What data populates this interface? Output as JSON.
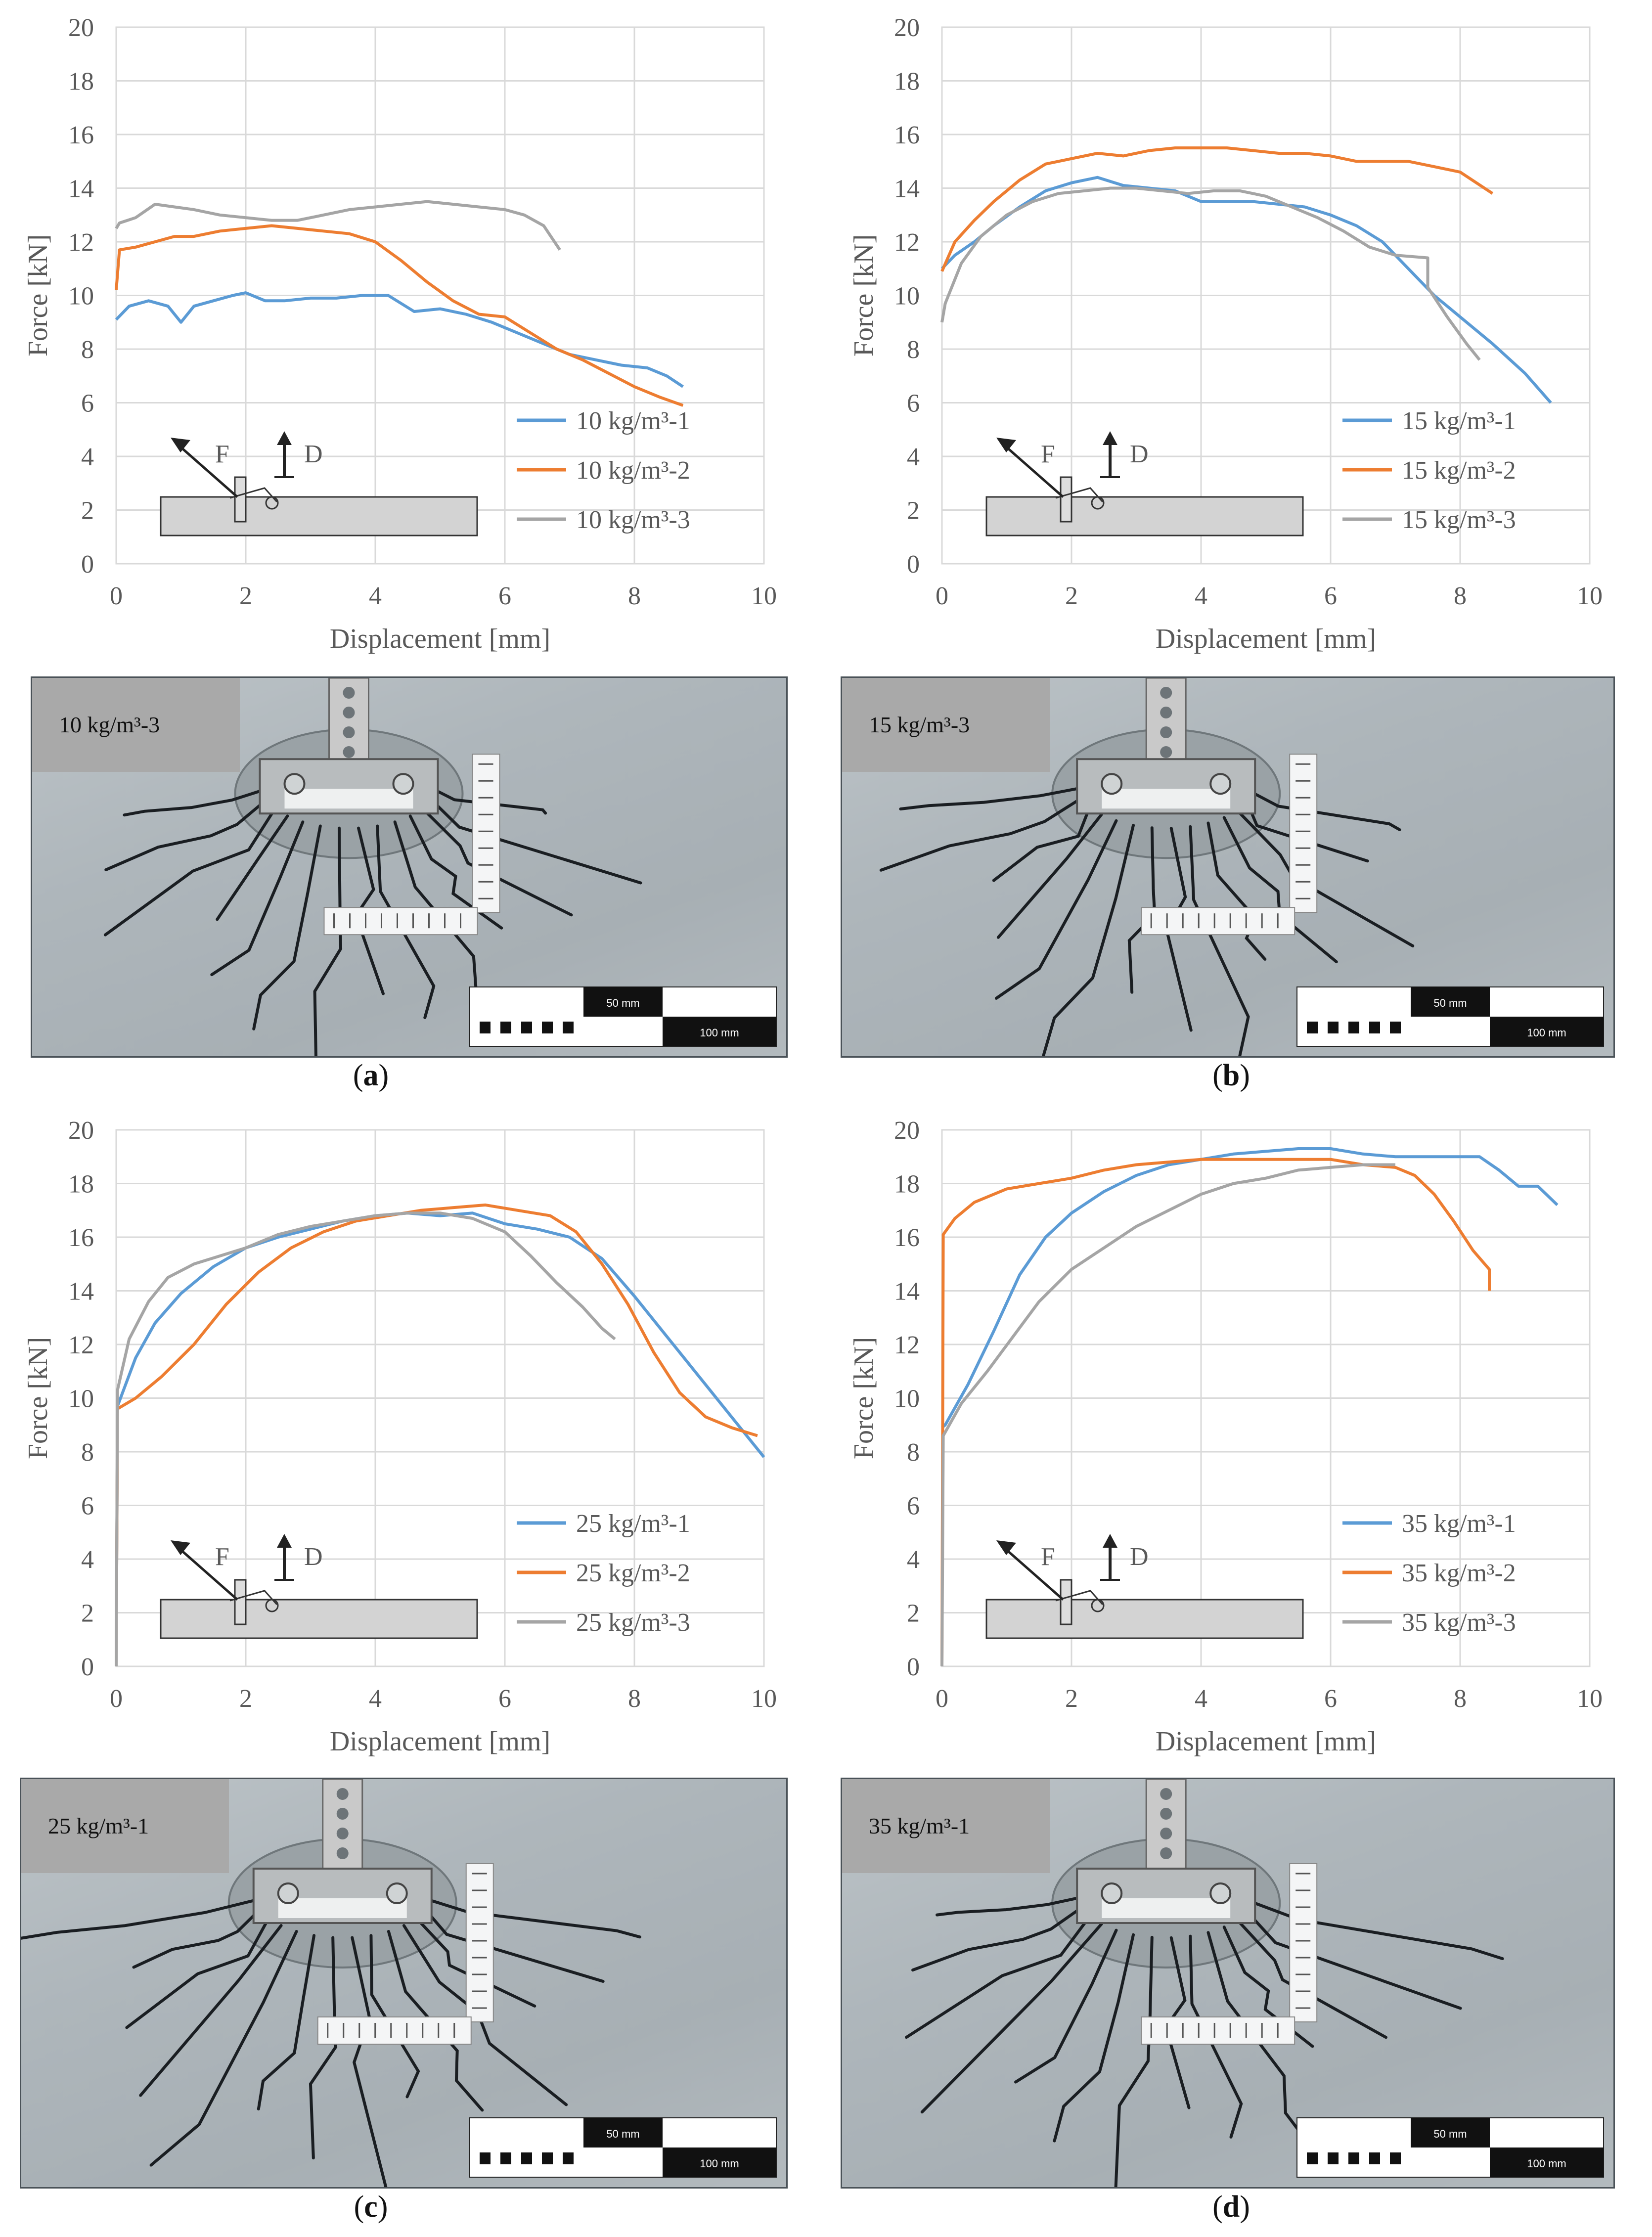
{
  "chart_data": [
    {
      "type": "line",
      "panel": "a",
      "xlabel": "Displacement [mm]",
      "ylabel": "Force [kN]",
      "xlim": [
        0,
        10
      ],
      "ylim": [
        0,
        20
      ],
      "xticks": [
        0,
        2,
        4,
        6,
        8,
        10
      ],
      "yticks": [
        0,
        2,
        4,
        6,
        8,
        10,
        12,
        14,
        16,
        18,
        20
      ],
      "grid": true,
      "legend_position": "bottom-right",
      "inset_labels": [
        "F",
        "D"
      ],
      "series": [
        {
          "name": "10 kg/m³-1",
          "color": "#5B9BD5",
          "x": [
            0,
            0.2,
            0.5,
            0.8,
            1.0,
            1.2,
            1.5,
            1.8,
            2.0,
            2.3,
            2.6,
            3.0,
            3.4,
            3.8,
            4.2,
            4.6,
            5.0,
            5.4,
            5.8,
            6.2,
            6.6,
            7.0,
            7.4,
            7.8,
            8.2,
            8.5,
            8.75
          ],
          "y": [
            9.1,
            9.6,
            9.8,
            9.6,
            9.0,
            9.6,
            9.8,
            10.0,
            10.1,
            9.8,
            9.8,
            9.9,
            9.9,
            10.0,
            10.0,
            9.4,
            9.5,
            9.3,
            9.0,
            8.6,
            8.2,
            7.8,
            7.6,
            7.4,
            7.3,
            7.0,
            6.6
          ]
        },
        {
          "name": "10 kg/m³-2",
          "color": "#ED7D31",
          "x": [
            0,
            0.05,
            0.3,
            0.6,
            0.9,
            1.2,
            1.6,
            2.0,
            2.4,
            2.8,
            3.2,
            3.6,
            4.0,
            4.4,
            4.8,
            5.2,
            5.6,
            6.0,
            6.4,
            6.8,
            7.2,
            7.6,
            8.0,
            8.4,
            8.75
          ],
          "y": [
            10.2,
            11.7,
            11.8,
            12.0,
            12.2,
            12.2,
            12.4,
            12.5,
            12.6,
            12.5,
            12.4,
            12.3,
            12.0,
            11.3,
            10.5,
            9.8,
            9.3,
            9.2,
            8.6,
            8.0,
            7.6,
            7.1,
            6.6,
            6.2,
            5.9
          ]
        },
        {
          "name": "10 kg/m³-3",
          "color": "#A5A5A5",
          "x": [
            0,
            0.05,
            0.3,
            0.6,
            0.9,
            1.2,
            1.6,
            2.0,
            2.4,
            2.8,
            3.2,
            3.6,
            4.0,
            4.4,
            4.8,
            5.2,
            5.6,
            6.0,
            6.3,
            6.6,
            6.85
          ],
          "y": [
            12.5,
            12.7,
            12.9,
            13.4,
            13.3,
            13.2,
            13.0,
            12.9,
            12.8,
            12.8,
            13.0,
            13.2,
            13.3,
            13.4,
            13.5,
            13.4,
            13.3,
            13.2,
            13.0,
            12.6,
            11.7
          ]
        }
      ]
    },
    {
      "type": "line",
      "panel": "b",
      "xlabel": "Displacement [mm]",
      "ylabel": "Force [kN]",
      "xlim": [
        0,
        10
      ],
      "ylim": [
        0,
        20
      ],
      "xticks": [
        0,
        2,
        4,
        6,
        8,
        10
      ],
      "yticks": [
        0,
        2,
        4,
        6,
        8,
        10,
        12,
        14,
        16,
        18,
        20
      ],
      "grid": true,
      "legend_position": "bottom-right",
      "inset_labels": [
        "F",
        "D"
      ],
      "series": [
        {
          "name": "15 kg/m³-1",
          "color": "#5B9BD5",
          "x": [
            0,
            0.2,
            0.5,
            0.8,
            1.2,
            1.6,
            2.0,
            2.4,
            2.8,
            3.2,
            3.6,
            4.0,
            4.4,
            4.8,
            5.2,
            5.6,
            6.0,
            6.4,
            6.8,
            7.2,
            7.6,
            8.0,
            8.5,
            9.0,
            9.4
          ],
          "y": [
            11.0,
            11.5,
            12.0,
            12.6,
            13.3,
            13.9,
            14.2,
            14.4,
            14.1,
            14.0,
            13.9,
            13.5,
            13.5,
            13.5,
            13.4,
            13.3,
            13.0,
            12.6,
            12.0,
            11.0,
            10.0,
            9.2,
            8.2,
            7.1,
            6.0
          ]
        },
        {
          "name": "15 kg/m³-2",
          "color": "#ED7D31",
          "x": [
            0,
            0.2,
            0.5,
            0.8,
            1.2,
            1.6,
            2.0,
            2.4,
            2.8,
            3.2,
            3.6,
            4.0,
            4.4,
            4.8,
            5.2,
            5.6,
            6.0,
            6.4,
            6.8,
            7.2,
            7.6,
            8.0,
            8.5
          ],
          "y": [
            10.9,
            12.0,
            12.8,
            13.5,
            14.3,
            14.9,
            15.1,
            15.3,
            15.2,
            15.4,
            15.5,
            15.5,
            15.5,
            15.4,
            15.3,
            15.3,
            15.2,
            15.0,
            15.0,
            15.0,
            14.8,
            14.6,
            13.8
          ]
        },
        {
          "name": "15 kg/m³-3",
          "color": "#A5A5A5",
          "x": [
            0,
            0.05,
            0.3,
            0.6,
            1.0,
            1.4,
            1.8,
            2.2,
            2.6,
            3.0,
            3.4,
            3.8,
            4.2,
            4.6,
            5.0,
            5.4,
            5.8,
            6.2,
            6.6,
            7.0,
            7.5,
            7.5,
            7.8,
            8.1,
            8.3
          ],
          "y": [
            9.0,
            9.7,
            11.2,
            12.2,
            13.0,
            13.5,
            13.8,
            13.9,
            14.0,
            14.0,
            13.9,
            13.8,
            13.9,
            13.9,
            13.7,
            13.3,
            12.9,
            12.4,
            11.8,
            11.5,
            11.4,
            10.3,
            9.2,
            8.2,
            7.6
          ]
        }
      ]
    },
    {
      "type": "line",
      "panel": "c",
      "xlabel": "Displacement [mm]",
      "ylabel": "Force [kN]",
      "xlim": [
        0,
        10
      ],
      "ylim": [
        0,
        20
      ],
      "xticks": [
        0,
        2,
        4,
        6,
        8,
        10
      ],
      "yticks": [
        0,
        2,
        4,
        6,
        8,
        10,
        12,
        14,
        16,
        18,
        20
      ],
      "grid": true,
      "legend_position": "bottom-right",
      "inset_labels": [
        "F",
        "D"
      ],
      "series": [
        {
          "name": "25 kg/m³-1",
          "color": "#5B9BD5",
          "x": [
            0,
            0.02,
            0.3,
            0.6,
            1.0,
            1.5,
            2.0,
            2.5,
            3.0,
            3.5,
            4.0,
            4.5,
            5.0,
            5.5,
            6.0,
            6.5,
            7.0,
            7.5,
            8.0,
            8.5,
            9.0,
            9.5,
            10.0
          ],
          "y": [
            0,
            9.7,
            11.5,
            12.8,
            13.9,
            14.9,
            15.6,
            16.0,
            16.3,
            16.6,
            16.8,
            16.9,
            16.8,
            16.9,
            16.5,
            16.3,
            16.0,
            15.2,
            13.8,
            12.3,
            10.8,
            9.3,
            7.8
          ]
        },
        {
          "name": "25 kg/m³-2",
          "color": "#ED7D31",
          "x": [
            0,
            0.02,
            0.3,
            0.7,
            1.2,
            1.7,
            2.2,
            2.7,
            3.2,
            3.7,
            4.2,
            4.7,
            5.2,
            5.7,
            6.2,
            6.7,
            7.1,
            7.5,
            7.9,
            8.3,
            8.7,
            9.1,
            9.5,
            9.9
          ],
          "y": [
            0,
            9.6,
            10.0,
            10.8,
            12.0,
            13.5,
            14.7,
            15.6,
            16.2,
            16.6,
            16.8,
            17.0,
            17.1,
            17.2,
            17.0,
            16.8,
            16.2,
            15.0,
            13.5,
            11.7,
            10.2,
            9.3,
            8.9,
            8.6
          ]
        },
        {
          "name": "25 kg/m³-3",
          "color": "#A5A5A5",
          "x": [
            0,
            0.02,
            0.2,
            0.5,
            0.8,
            1.2,
            1.6,
            2.0,
            2.5,
            3.0,
            3.5,
            4.0,
            4.5,
            5.0,
            5.5,
            6.0,
            6.4,
            6.8,
            7.2,
            7.5,
            7.7
          ],
          "y": [
            0,
            10.3,
            12.2,
            13.6,
            14.5,
            15.0,
            15.3,
            15.6,
            16.1,
            16.4,
            16.6,
            16.8,
            16.9,
            16.9,
            16.7,
            16.2,
            15.3,
            14.3,
            13.4,
            12.6,
            12.2
          ]
        }
      ]
    },
    {
      "type": "line",
      "panel": "d",
      "xlabel": "Displacement [mm]",
      "ylabel": "Force [kN]",
      "xlim": [
        0,
        10
      ],
      "ylim": [
        0,
        20
      ],
      "xticks": [
        0,
        2,
        4,
        6,
        8,
        10
      ],
      "yticks": [
        0,
        2,
        4,
        6,
        8,
        10,
        12,
        14,
        16,
        18,
        20
      ],
      "grid": true,
      "legend_position": "bottom-right",
      "inset_labels": [
        "F",
        "D"
      ],
      "series": [
        {
          "name": "35 kg/m³-1",
          "color": "#5B9BD5",
          "x": [
            0,
            0.05,
            0.4,
            0.8,
            1.2,
            1.6,
            2.0,
            2.5,
            3.0,
            3.5,
            4.0,
            4.5,
            5.0,
            5.5,
            6.0,
            6.5,
            7.0,
            7.5,
            8.0,
            8.3,
            8.6,
            8.9,
            9.2,
            9.5
          ],
          "y": [
            8.9,
            9.0,
            10.5,
            12.5,
            14.6,
            16.0,
            16.9,
            17.7,
            18.3,
            18.7,
            18.9,
            19.1,
            19.2,
            19.3,
            19.3,
            19.1,
            19.0,
            19.0,
            19.0,
            19.0,
            18.5,
            17.9,
            17.9,
            17.2
          ]
        },
        {
          "name": "35 kg/m³-2",
          "color": "#ED7D31",
          "x": [
            0,
            0.02,
            0.2,
            0.5,
            1.0,
            1.5,
            2.0,
            2.5,
            3.0,
            3.5,
            4.0,
            4.5,
            5.0,
            5.5,
            6.0,
            6.5,
            7.0,
            7.3,
            7.6,
            7.9,
            8.2,
            8.45,
            8.45
          ],
          "y": [
            0,
            16.1,
            16.7,
            17.3,
            17.8,
            18.0,
            18.2,
            18.5,
            18.7,
            18.8,
            18.9,
            18.9,
            18.9,
            18.9,
            18.9,
            18.7,
            18.6,
            18.3,
            17.6,
            16.6,
            15.5,
            14.8,
            14.0
          ]
        },
        {
          "name": "35 kg/m³-3",
          "color": "#A5A5A5",
          "x": [
            0,
            0.02,
            0.3,
            0.7,
            1.1,
            1.5,
            2.0,
            2.5,
            3.0,
            3.5,
            4.0,
            4.5,
            5.0,
            5.5,
            6.0,
            6.5,
            7.0
          ],
          "y": [
            0,
            8.6,
            9.8,
            11.0,
            12.3,
            13.6,
            14.8,
            15.6,
            16.4,
            17.0,
            17.6,
            18.0,
            18.2,
            18.5,
            18.6,
            18.7,
            18.7
          ]
        }
      ]
    }
  ],
  "photos": [
    {
      "label": "10 kg/m³-3",
      "scale_text_1": "50 mm",
      "scale_text_2": "100 mm"
    },
    {
      "label": "15 kg/m³-3",
      "scale_text_1": "50 mm",
      "scale_text_2": "100 mm"
    },
    {
      "label": "25 kg/m³-1",
      "scale_text_1": "50 mm",
      "scale_text_2": "100 mm"
    },
    {
      "label": "35 kg/m³-1",
      "scale_text_1": "50 mm",
      "scale_text_2": "100 mm"
    }
  ],
  "captions": [
    "(a)",
    "(b)",
    "(c)",
    "(d)"
  ],
  "caption_letters": [
    "a",
    "b",
    "c",
    "d"
  ]
}
